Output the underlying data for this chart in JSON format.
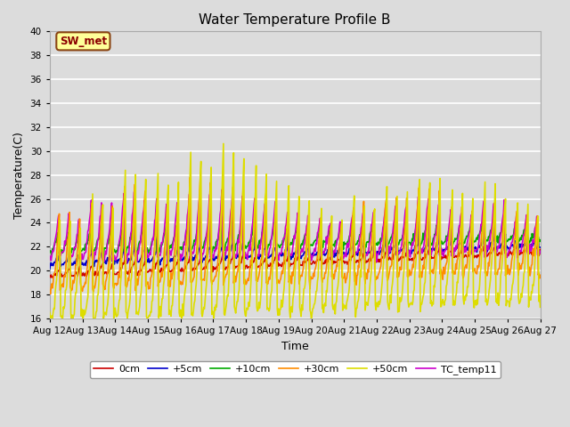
{
  "title": "Water Temperature Profile B",
  "xlabel": "Time",
  "ylabel": "Temperature(C)",
  "ylim": [
    16,
    40
  ],
  "yticks": [
    16,
    18,
    20,
    22,
    24,
    26,
    28,
    30,
    32,
    34,
    36,
    38,
    40
  ],
  "x_labels": [
    "Aug 12",
    "Aug 13",
    "Aug 14",
    "Aug 15",
    "Aug 16",
    "Aug 17",
    "Aug 18",
    "Aug 19",
    "Aug 20",
    "Aug 21",
    "Aug 22",
    "Aug 23",
    "Aug 24",
    "Aug 25",
    "Aug 26",
    "Aug 27"
  ],
  "annotation_text": "SW_met",
  "annotation_color": "#8B0000",
  "annotation_bg": "#FFFF99",
  "annotation_border": "#8B4513",
  "colors": {
    "0cm": "#CC0000",
    "+5cm": "#0000CC",
    "+10cm": "#00AA00",
    "+30cm": "#FF8C00",
    "+50cm": "#DDDD00",
    "TC_temp11": "#CC00CC"
  },
  "lw": 1.2,
  "fig_bg": "#DCDCDC",
  "ax_bg": "#DCDCDC",
  "grid_color": "#FFFFFF"
}
